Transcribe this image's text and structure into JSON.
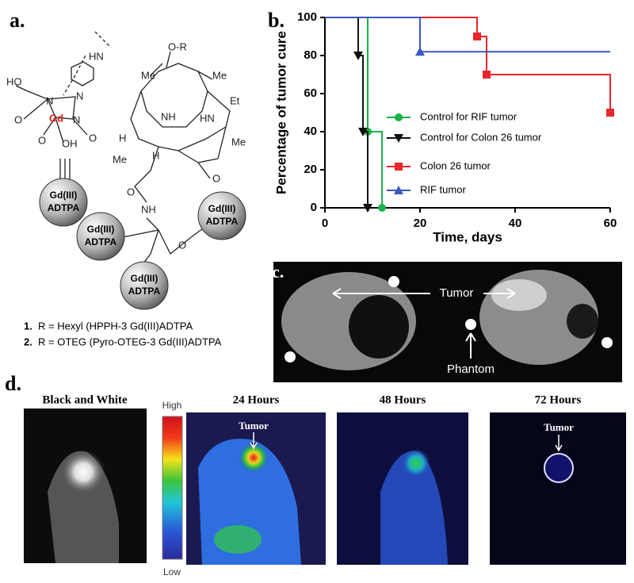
{
  "panel_a": {
    "label": "a.",
    "atoms": [
      "HN",
      "HO",
      "N",
      "N",
      "N",
      "O",
      "Gd",
      "O",
      "OH",
      "O",
      "O-R",
      "Me",
      "Me",
      "Et",
      "NH",
      "HN",
      "H",
      "Me",
      "H",
      "Me",
      "O",
      "O",
      "NH",
      "O",
      "O"
    ],
    "unit_top": "Gd(III)",
    "unit_bottom": "ADTPA",
    "compounds": [
      {
        "number": "1.",
        "text": "R = Hexyl (HPPH-3 Gd(III)ADTPA"
      },
      {
        "number": "2.",
        "text": "R = OTEG (Pyro-OTEG-3 Gd(III)ADTPA"
      }
    ]
  },
  "panel_b_label": "b.",
  "chart_data": {
    "type": "line",
    "xlabel": "Time, days",
    "ylabel": "Percentage of tumor cure",
    "xlim": [
      0,
      60
    ],
    "xticks": [
      0,
      20,
      40,
      60
    ],
    "ylim": [
      0,
      100
    ],
    "yticks": [
      0,
      20,
      40,
      60,
      80,
      100
    ],
    "series": [
      {
        "name": "Control for RIF tumor",
        "color": "#19b34a",
        "marker": "circle",
        "x": [
          0,
          9,
          9,
          12,
          12
        ],
        "values": [
          100,
          100,
          40,
          40,
          0
        ]
      },
      {
        "name": "Control for Colon 26 tumor",
        "color": "#111111",
        "marker": "triangle-down",
        "x": [
          0,
          7,
          7,
          8,
          8,
          9,
          9
        ],
        "values": [
          100,
          100,
          80,
          80,
          40,
          40,
          0
        ]
      },
      {
        "name": "Colon 26 tumor",
        "color": "#e8262b",
        "marker": "square",
        "x": [
          0,
          32,
          32,
          34,
          34,
          60,
          60
        ],
        "values": [
          100,
          100,
          90,
          90,
          70,
          70,
          50
        ]
      },
      {
        "name": "RIF tumor",
        "color": "#3a57c4",
        "marker": "triangle-up",
        "x": [
          0,
          20,
          20,
          60
        ],
        "values": [
          100,
          100,
          82,
          82
        ]
      }
    ]
  },
  "panel_c": {
    "label": "c.",
    "tumor": "Tumor",
    "phantom": "Phantom"
  },
  "panel_d": {
    "label": "d.",
    "titles": [
      "Black and White",
      "24 Hours",
      "48 Hours",
      "72 Hours"
    ],
    "scale_high": "High",
    "scale_low": "Low",
    "tumor_24": "Tumor",
    "tumor_72": "Tumor"
  }
}
